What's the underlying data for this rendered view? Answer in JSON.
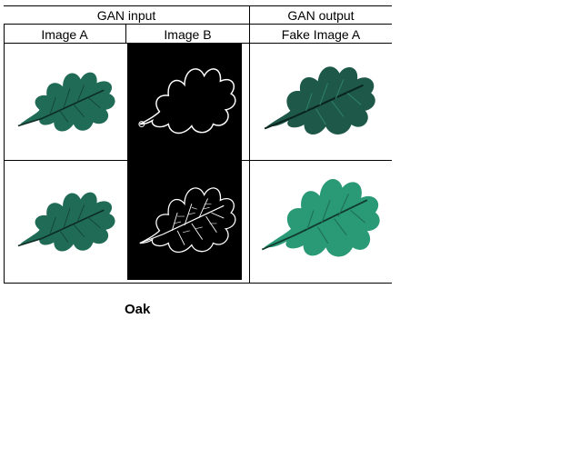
{
  "table": {
    "header_input": "GAN input",
    "header_output": "GAN output",
    "col_image_a": "Image A",
    "col_image_b": "Image B",
    "col_fake_a": "Fake Image A"
  },
  "rows": [
    {
      "image_a": "leaf-icon",
      "image_b": "leaf-outline-edge-map",
      "fake_a": "leaf-icon"
    },
    {
      "image_a": "leaf-icon",
      "image_b": "leaf-vein-edge-map",
      "fake_a": "leaf-icon"
    }
  ],
  "caption": "Oak",
  "colors": {
    "leaf_dark": "#1f6b56",
    "leaf_fake_1": "#1d5848",
    "leaf_fake_2": "#2a9a76",
    "edge_bg": "#000000",
    "edge_line": "#ffffff"
  }
}
